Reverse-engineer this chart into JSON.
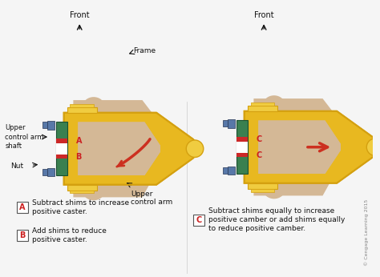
{
  "bg_color": "#f5f5f5",
  "tan_color": "#d4b896",
  "tan_dark": "#c8a87a",
  "yellow_color": "#d4a010",
  "yellow_mid": "#e8b820",
  "yellow_light": "#f0cc40",
  "green_color": "#3a8050",
  "red_shim": "#cc2828",
  "blue_nut": "#5878a8",
  "arrow_red": "#cc3020",
  "text_color": "#111111",
  "label_color": "#cc2020",
  "copyright_color": "#888888",
  "text_front": "Front",
  "text_frame": "Frame",
  "text_upper_shaft": "Upper\ncontrol arm\nshaft",
  "text_nut": "Nut",
  "text_upper_arm": "Upper\ncontrol arm",
  "legend_A": "Subtract shims to increase\npositive caster.",
  "legend_B": "Add shims to reduce\npositive caster.",
  "legend_C": "Subtract shims equally to increase\npositive camber or add shims equally\nto reduce positive camber.",
  "copyright": "© Cengage Learning 2015"
}
